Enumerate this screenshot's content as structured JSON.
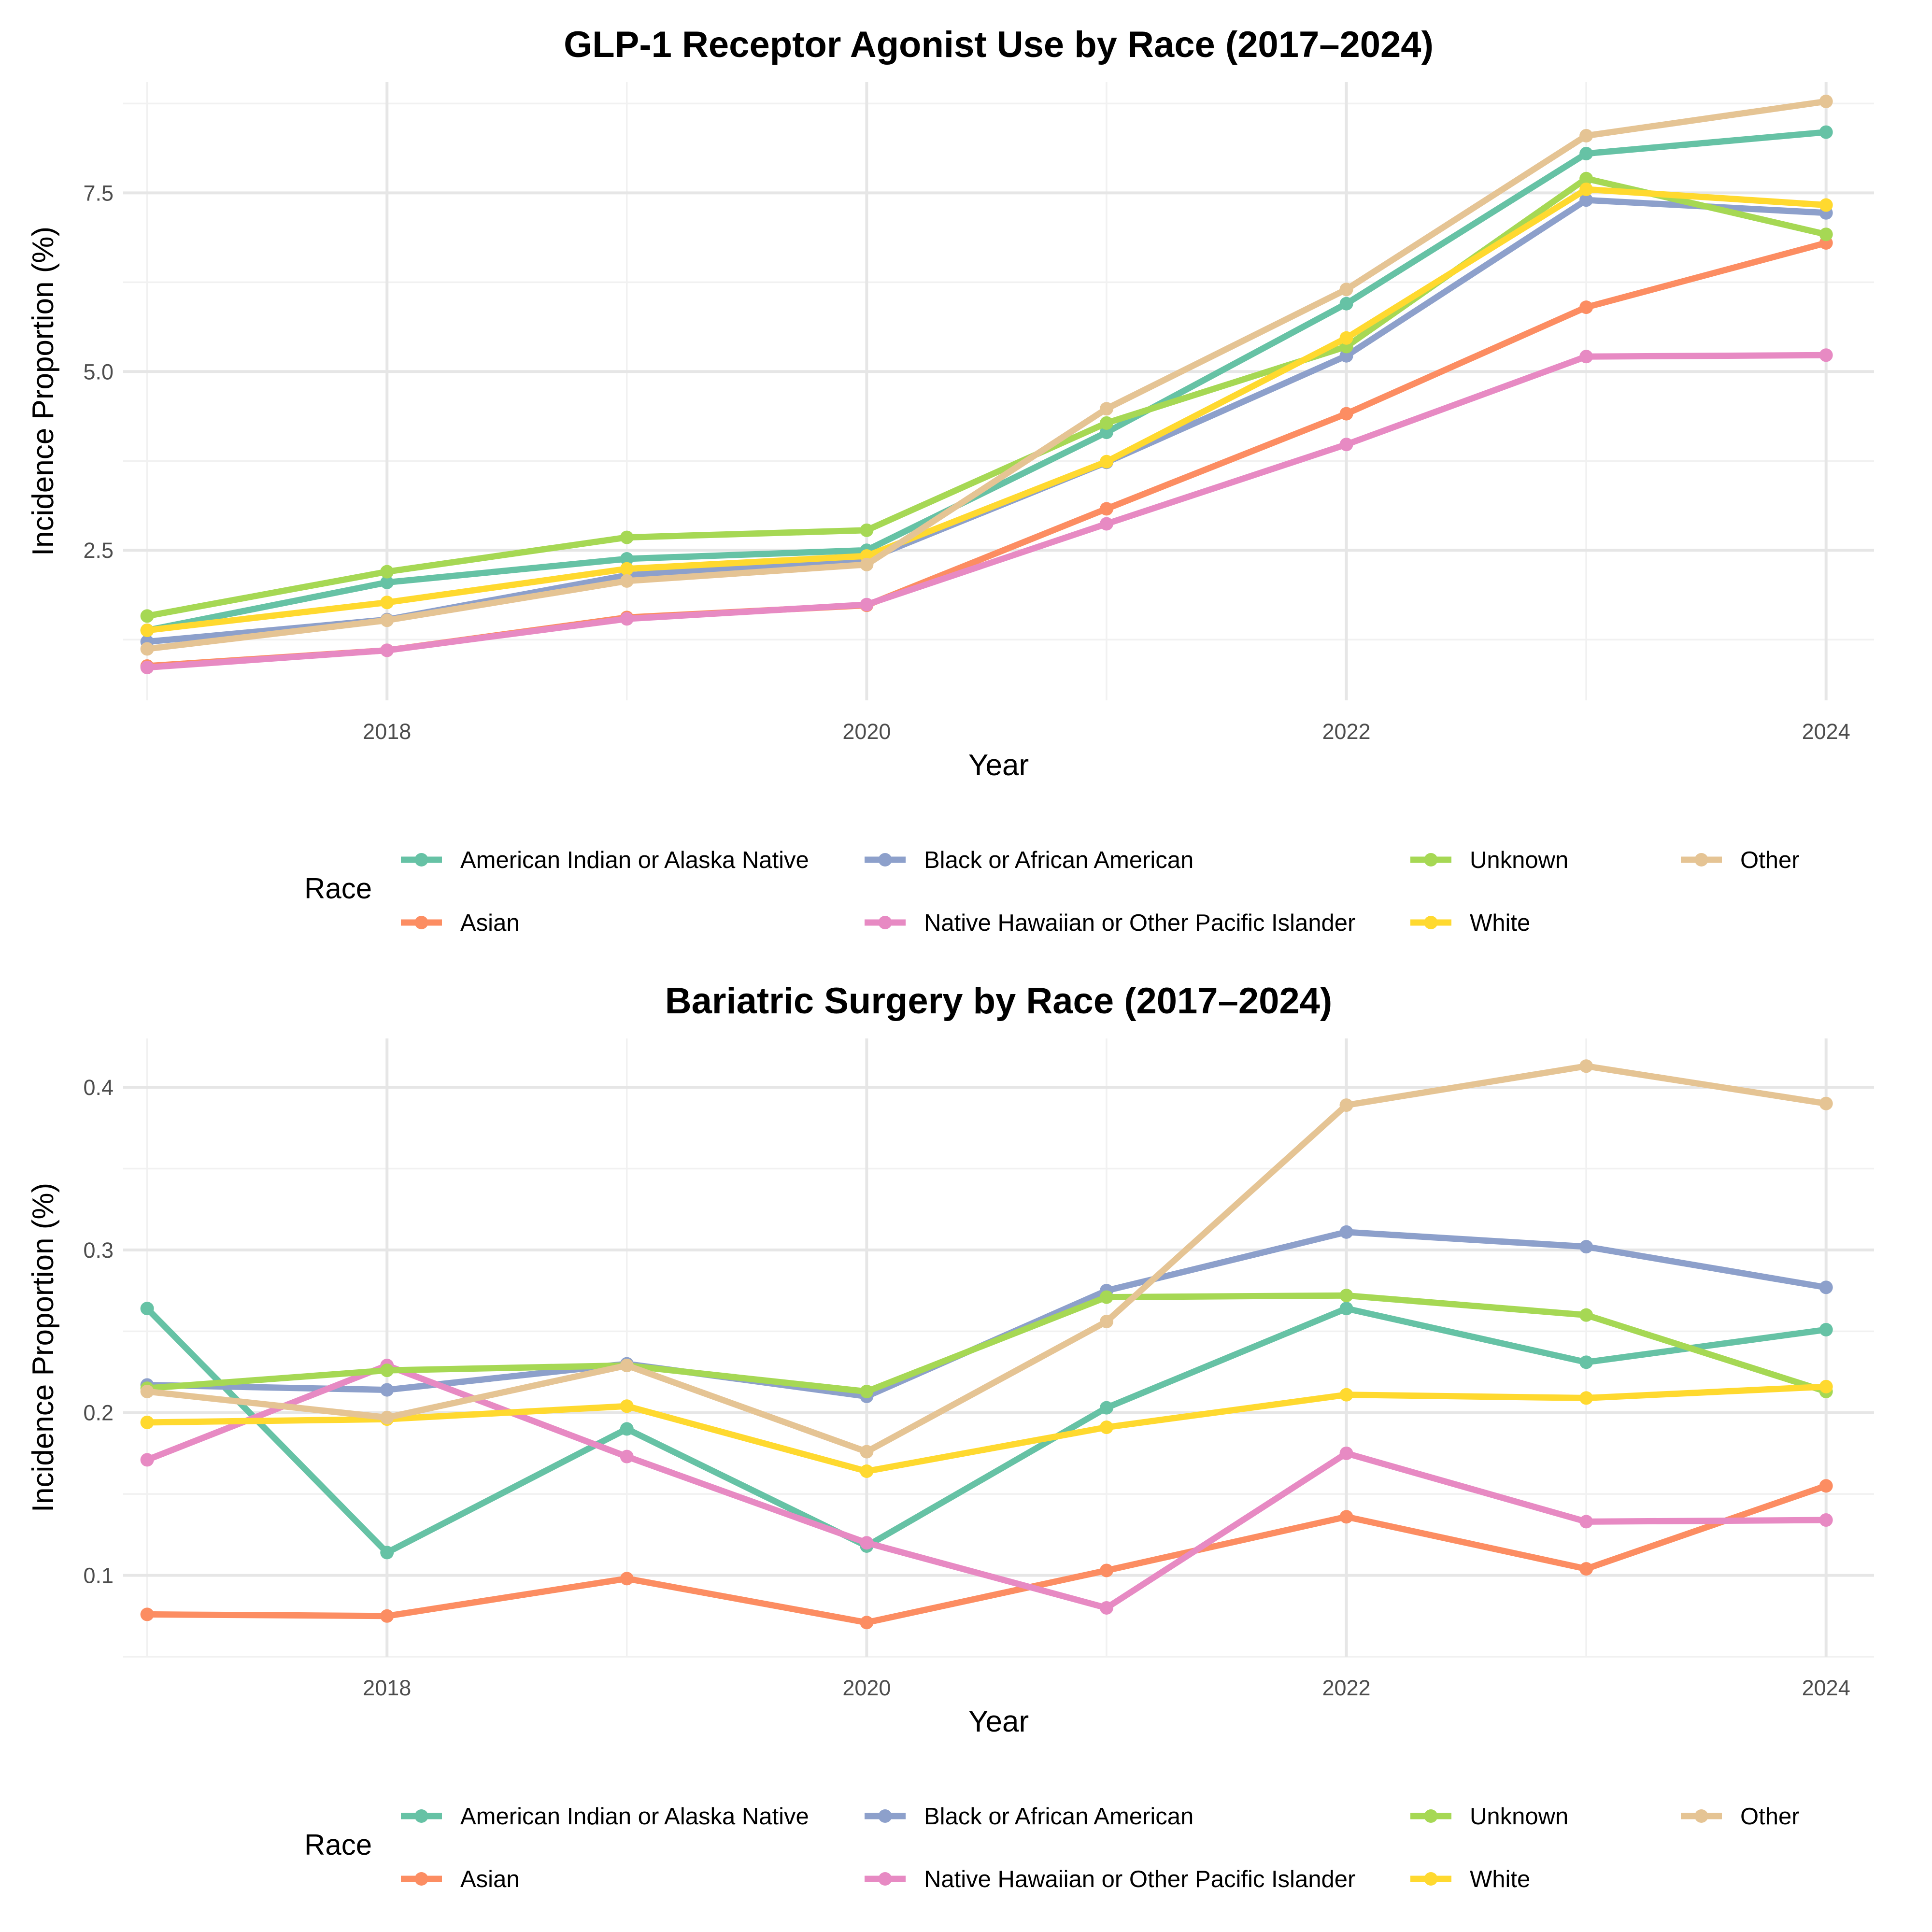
{
  "colors": {
    "American Indian or Alaska Native": "#66c2a5",
    "Asian": "#fc8d62",
    "Black or African American": "#8da0cb",
    "Native Hawaiian or Other Pacific Islander": "#e78ac3",
    "Unknown": "#a6d854",
    "White": "#ffd92f",
    "Other": "#e5c494"
  },
  "chart_data": [
    {
      "type": "line",
      "title": "GLP-1 Receptor Agonist Use by Race (2017–2024)",
      "xlabel": "Year",
      "ylabel": "Incidence Proportion (%)",
      "x": [
        2017,
        2018,
        2019,
        2020,
        2021,
        2022,
        2023,
        2024
      ],
      "xticks": [
        2018,
        2020,
        2022,
        2024
      ],
      "xlim": [
        2016.9,
        2024.2
      ],
      "yticks": [
        2.5,
        5.0,
        7.5
      ],
      "yticklabels": [
        "2.5",
        "5.0",
        "7.5"
      ],
      "ylim": [
        0.4,
        9.05
      ],
      "legend_title": "Race",
      "legend_position": "bottom",
      "series": [
        {
          "name": "American Indian or Alaska Native",
          "values": [
            1.38,
            2.05,
            2.38,
            2.5,
            4.15,
            5.95,
            8.05,
            8.35
          ]
        },
        {
          "name": "Asian",
          "values": [
            0.88,
            1.1,
            1.56,
            1.73,
            3.08,
            4.41,
            5.9,
            6.8
          ]
        },
        {
          "name": "Black or African American",
          "values": [
            1.22,
            1.53,
            2.15,
            2.37,
            3.73,
            5.22,
            7.4,
            7.22
          ]
        },
        {
          "name": "Native Hawaiian or Other Pacific Islander",
          "values": [
            0.86,
            1.1,
            1.54,
            1.74,
            2.87,
            3.98,
            5.21,
            5.23
          ]
        },
        {
          "name": "Unknown",
          "values": [
            1.58,
            2.2,
            2.68,
            2.78,
            4.28,
            5.35,
            7.7,
            6.92
          ]
        },
        {
          "name": "White",
          "values": [
            1.38,
            1.77,
            2.24,
            2.42,
            3.74,
            5.47,
            7.55,
            7.33
          ]
        },
        {
          "name": "Other",
          "values": [
            1.12,
            1.52,
            2.07,
            2.3,
            4.48,
            6.15,
            8.3,
            8.78
          ]
        }
      ]
    },
    {
      "type": "line",
      "title": "Bariatric Surgery by Race (2017–2024)",
      "xlabel": "Year",
      "ylabel": "Incidence Proportion (%)",
      "x": [
        2017,
        2018,
        2019,
        2020,
        2021,
        2022,
        2023,
        2024
      ],
      "xticks": [
        2018,
        2020,
        2022,
        2024
      ],
      "xlim": [
        2016.9,
        2024.2
      ],
      "yticks": [
        0.1,
        0.2,
        0.3,
        0.4
      ],
      "yticklabels": [
        "0.1",
        "0.2",
        "0.3",
        "0.4"
      ],
      "ylim": [
        0.05,
        0.43
      ],
      "legend_title": "Race",
      "legend_position": "bottom",
      "series": [
        {
          "name": "American Indian or Alaska Native",
          "values": [
            0.264,
            0.114,
            0.19,
            0.118,
            0.203,
            0.264,
            0.231,
            0.251
          ]
        },
        {
          "name": "Asian",
          "values": [
            0.076,
            0.075,
            0.098,
            0.071,
            0.103,
            0.136,
            0.104,
            0.155
          ]
        },
        {
          "name": "Black or African American",
          "values": [
            0.217,
            0.214,
            0.23,
            0.21,
            0.275,
            0.311,
            0.302,
            0.277
          ]
        },
        {
          "name": "Native Hawaiian or Other Pacific Islander",
          "values": [
            0.171,
            0.229,
            0.173,
            0.12,
            0.08,
            0.175,
            0.133,
            0.134
          ]
        },
        {
          "name": "Unknown",
          "values": [
            0.215,
            0.226,
            0.229,
            0.213,
            0.271,
            0.272,
            0.26,
            0.213
          ]
        },
        {
          "name": "White",
          "values": [
            0.194,
            0.196,
            0.204,
            0.164,
            0.191,
            0.211,
            0.209,
            0.216
          ]
        },
        {
          "name": "Other",
          "values": [
            0.213,
            0.197,
            0.229,
            0.176,
            0.256,
            0.389,
            0.413,
            0.39
          ]
        }
      ]
    }
  ]
}
